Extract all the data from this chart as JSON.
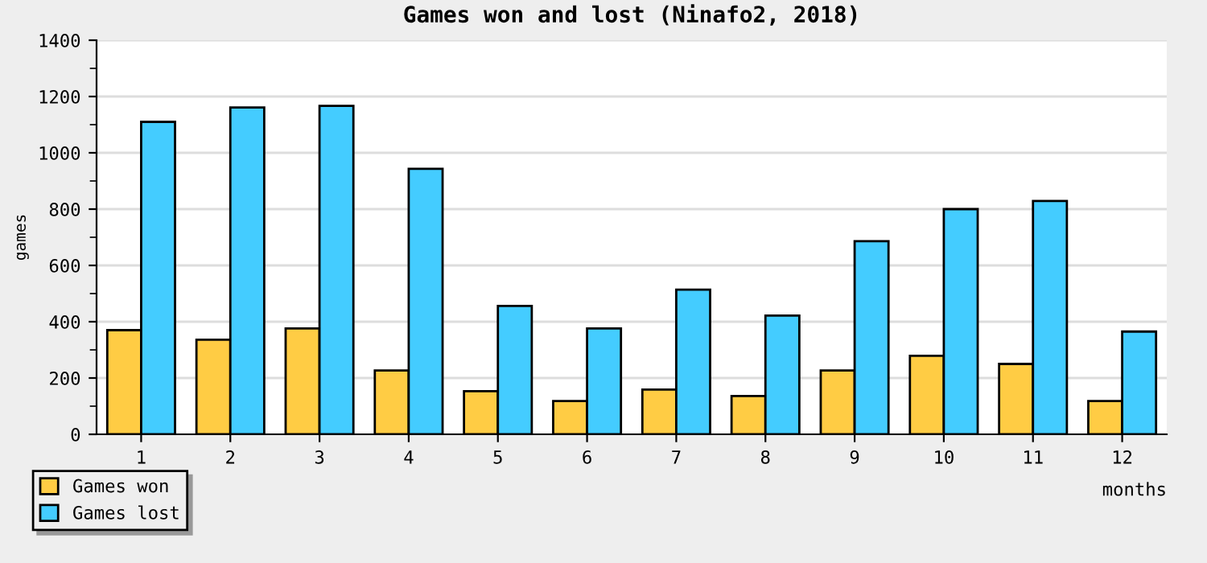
{
  "chart_data": {
    "type": "bar",
    "title": "Games won and lost (Ninafo2, 2018)",
    "xlabel": "months",
    "ylabel": "games",
    "categories": [
      "1",
      "2",
      "3",
      "4",
      "5",
      "6",
      "7",
      "8",
      "9",
      "10",
      "11",
      "12"
    ],
    "series": [
      {
        "name": "Games won",
        "color": "#ffcc44",
        "values": [
          370,
          336,
          376,
          227,
          153,
          118,
          159,
          136,
          227,
          279,
          250,
          118
        ]
      },
      {
        "name": "Games lost",
        "color": "#44ccff",
        "values": [
          1110,
          1161,
          1167,
          943,
          456,
          376,
          514,
          422,
          686,
          800,
          829,
          365
        ]
      }
    ],
    "ylim": [
      0,
      1400
    ],
    "yticks": [
      0,
      200,
      400,
      600,
      800,
      1000,
      1200,
      1400
    ],
    "grid": "y",
    "legend": "bottom left"
  }
}
